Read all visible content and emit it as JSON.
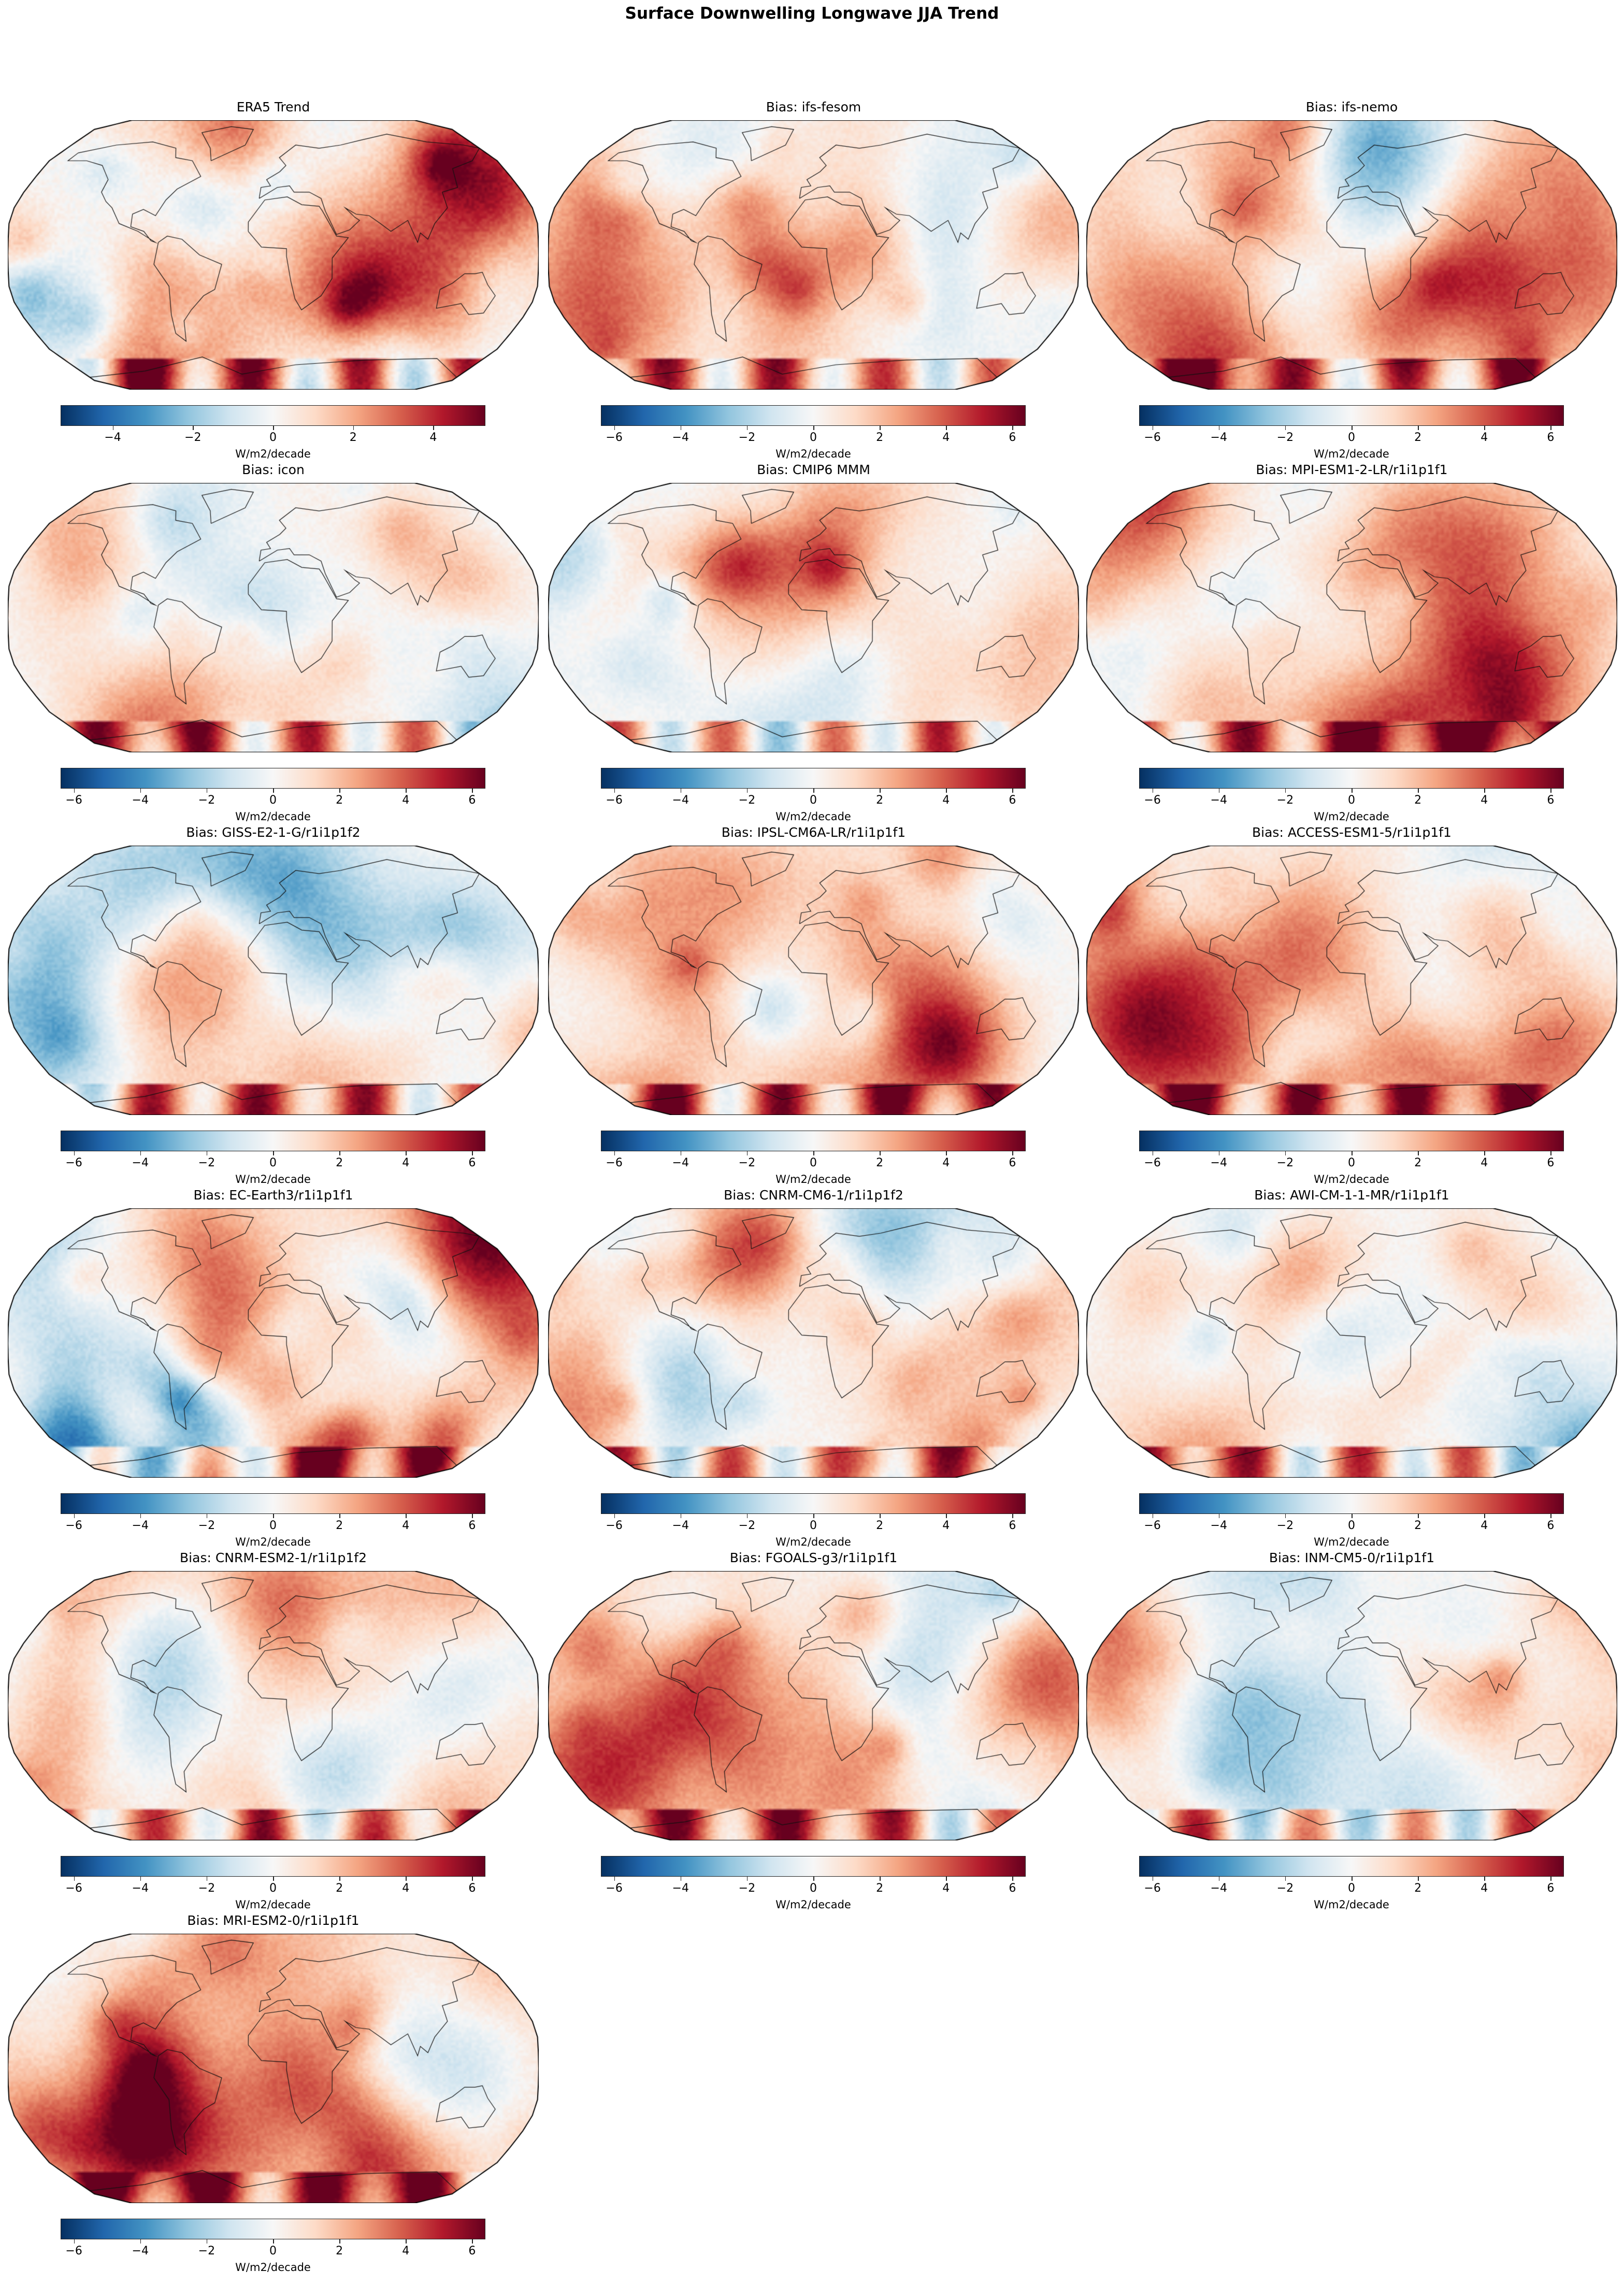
{
  "figure_title": "Surface Downwelling Longwave JJA Trend",
  "chart_data": [
    {
      "type": "heatmap",
      "projection": "robinson",
      "title": "ERA5 Trend",
      "colormap": "RdBu_r",
      "vlim": [
        -5.3,
        5.3
      ],
      "ticks": [
        -4,
        -2,
        0,
        2,
        4
      ],
      "colorbar_label": "W/m2/decade"
    },
    {
      "type": "heatmap",
      "projection": "robinson",
      "title": "Bias: ifs-fesom",
      "colormap": "RdBu_r",
      "vlim": [
        -6.4,
        6.4
      ],
      "ticks": [
        -6,
        -4,
        -2,
        0,
        2,
        4,
        6
      ],
      "colorbar_label": "W/m2/decade"
    },
    {
      "type": "heatmap",
      "projection": "robinson",
      "title": "Bias: ifs-nemo",
      "colormap": "RdBu_r",
      "vlim": [
        -6.4,
        6.4
      ],
      "ticks": [
        -6,
        -4,
        -2,
        0,
        2,
        4,
        6
      ],
      "colorbar_label": "W/m2/decade"
    },
    {
      "type": "heatmap",
      "projection": "robinson",
      "title": "Bias: icon",
      "colormap": "RdBu_r",
      "vlim": [
        -6.4,
        6.4
      ],
      "ticks": [
        -6,
        -4,
        -2,
        0,
        2,
        4,
        6
      ],
      "colorbar_label": "W/m2/decade"
    },
    {
      "type": "heatmap",
      "projection": "robinson",
      "title": "Bias: CMIP6 MMM",
      "colormap": "RdBu_r",
      "vlim": [
        -6.4,
        6.4
      ],
      "ticks": [
        -6,
        -4,
        -2,
        0,
        2,
        4,
        6
      ],
      "colorbar_label": "W/m2/decade"
    },
    {
      "type": "heatmap",
      "projection": "robinson",
      "title": "Bias: MPI-ESM1-2-LR/r1i1p1f1",
      "colormap": "RdBu_r",
      "vlim": [
        -6.4,
        6.4
      ],
      "ticks": [
        -6,
        -4,
        -2,
        0,
        2,
        4,
        6
      ],
      "colorbar_label": "W/m2/decade"
    },
    {
      "type": "heatmap",
      "projection": "robinson",
      "title": "Bias: GISS-E2-1-G/r1i1p1f2",
      "colormap": "RdBu_r",
      "vlim": [
        -6.4,
        6.4
      ],
      "ticks": [
        -6,
        -4,
        -2,
        0,
        2,
        4,
        6
      ],
      "colorbar_label": "W/m2/decade"
    },
    {
      "type": "heatmap",
      "projection": "robinson",
      "title": "Bias: IPSL-CM6A-LR/r1i1p1f1",
      "colormap": "RdBu_r",
      "vlim": [
        -6.4,
        6.4
      ],
      "ticks": [
        -6,
        -4,
        -2,
        0,
        2,
        4,
        6
      ],
      "colorbar_label": "W/m2/decade"
    },
    {
      "type": "heatmap",
      "projection": "robinson",
      "title": "Bias: ACCESS-ESM1-5/r1i1p1f1",
      "colormap": "RdBu_r",
      "vlim": [
        -6.4,
        6.4
      ],
      "ticks": [
        -6,
        -4,
        -2,
        0,
        2,
        4,
        6
      ],
      "colorbar_label": "W/m2/decade"
    },
    {
      "type": "heatmap",
      "projection": "robinson",
      "title": "Bias: EC-Earth3/r1i1p1f1",
      "colormap": "RdBu_r",
      "vlim": [
        -6.4,
        6.4
      ],
      "ticks": [
        -6,
        -4,
        -2,
        0,
        2,
        4,
        6
      ],
      "colorbar_label": "W/m2/decade"
    },
    {
      "type": "heatmap",
      "projection": "robinson",
      "title": "Bias: CNRM-CM6-1/r1i1p1f2",
      "colormap": "RdBu_r",
      "vlim": [
        -6.4,
        6.4
      ],
      "ticks": [
        -6,
        -4,
        -2,
        0,
        2,
        4,
        6
      ],
      "colorbar_label": "W/m2/decade"
    },
    {
      "type": "heatmap",
      "projection": "robinson",
      "title": "Bias: AWI-CM-1-1-MR/r1i1p1f1",
      "colormap": "RdBu_r",
      "vlim": [
        -6.4,
        6.4
      ],
      "ticks": [
        -6,
        -4,
        -2,
        0,
        2,
        4,
        6
      ],
      "colorbar_label": "W/m2/decade"
    },
    {
      "type": "heatmap",
      "projection": "robinson",
      "title": "Bias: CNRM-ESM2-1/r1i1p1f2",
      "colormap": "RdBu_r",
      "vlim": [
        -6.4,
        6.4
      ],
      "ticks": [
        -6,
        -4,
        -2,
        0,
        2,
        4,
        6
      ],
      "colorbar_label": "W/m2/decade"
    },
    {
      "type": "heatmap",
      "projection": "robinson",
      "title": "Bias: FGOALS-g3/r1i1p1f1",
      "colormap": "RdBu_r",
      "vlim": [
        -6.4,
        6.4
      ],
      "ticks": [
        -6,
        -4,
        -2,
        0,
        2,
        4,
        6
      ],
      "colorbar_label": "W/m2/decade"
    },
    {
      "type": "heatmap",
      "projection": "robinson",
      "title": "Bias: INM-CM5-0/r1i1p1f1",
      "colormap": "RdBu_r",
      "vlim": [
        -6.4,
        6.4
      ],
      "ticks": [
        -6,
        -4,
        -2,
        0,
        2,
        4,
        6
      ],
      "colorbar_label": "W/m2/decade"
    },
    {
      "type": "heatmap",
      "projection": "robinson",
      "title": "Bias: MRI-ESM2-0/r1i1p1f1",
      "colormap": "RdBu_r",
      "vlim": [
        -6.4,
        6.4
      ],
      "ticks": [
        -6,
        -4,
        -2,
        0,
        2,
        4,
        6
      ],
      "colorbar_label": "W/m2/decade"
    }
  ]
}
